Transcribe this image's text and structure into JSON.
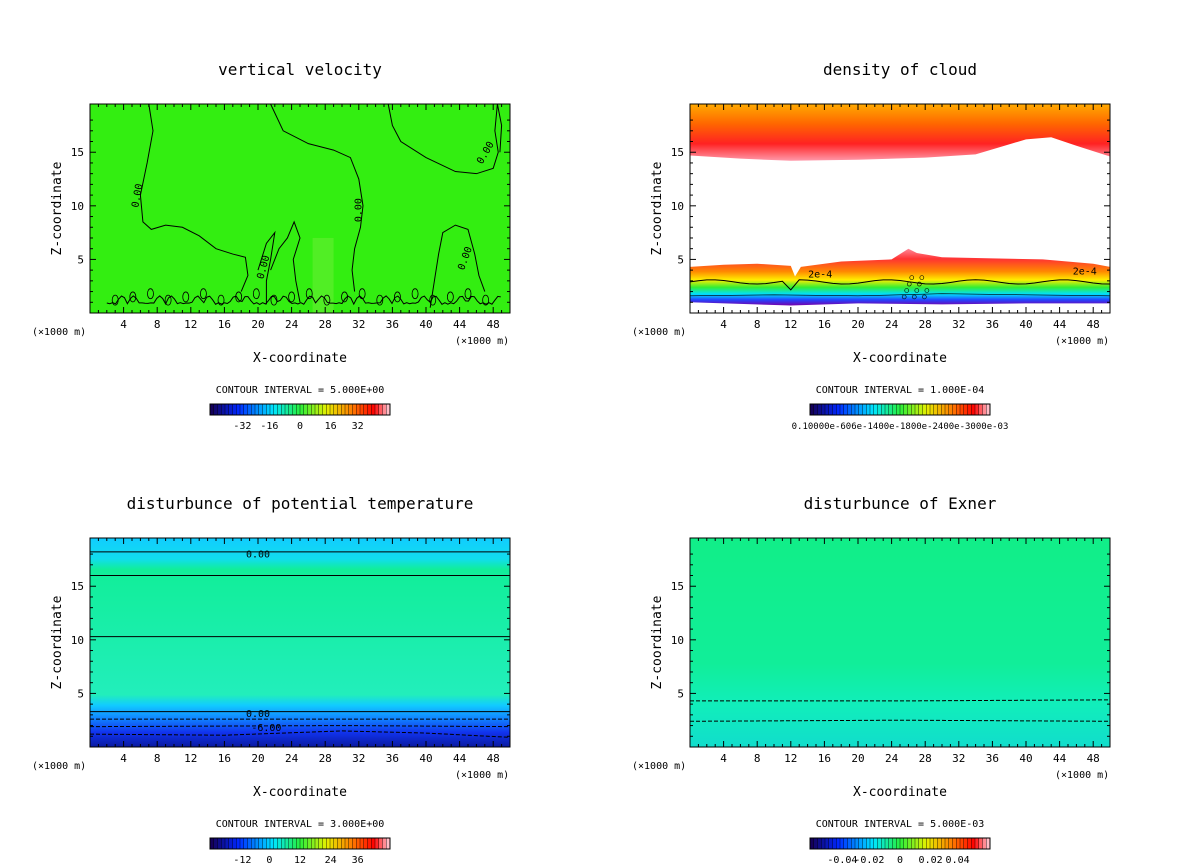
{
  "figure": {
    "panels": [
      {
        "id": "p0",
        "title": "vertical velocity",
        "field": "w",
        "bg": "#33ee11",
        "contour_interval": "CONTOUR INTERVAL = 5.000E+00",
        "cbar": {
          "kind": "spectral",
          "ticks": [
            "-32",
            "-16",
            "0",
            "16",
            "32"
          ]
        }
      },
      {
        "id": "p1",
        "title": "density of cloud",
        "field": "cloud",
        "bg": "#ffffff",
        "contour_interval": "CONTOUR INTERVAL = 1.000E-04",
        "cbar": {
          "kind": "spectral",
          "ticks": [
            "0.10000e-606e-1400e-1800e-2400e-3000e-03"
          ]
        }
      },
      {
        "id": "p2",
        "title": "disturbunce of potential temperature",
        "field": "theta",
        "bg": "#11ee88",
        "contour_interval": "CONTOUR INTERVAL = 3.000E+00",
        "cbar": {
          "kind": "spectral",
          "ticks": [
            "-12",
            "0",
            "12",
            "24",
            "36"
          ]
        }
      },
      {
        "id": "p3",
        "title": "disturbunce of Exner",
        "field": "exner",
        "bg": "#11ee99",
        "contour_interval": "CONTOUR INTERVAL = 5.000E-03",
        "cbar": {
          "kind": "spectral",
          "ticks": [
            "-0.04",
            "-0.02",
            "0",
            "0.02",
            "0.04"
          ]
        }
      }
    ],
    "x_axis_label": "X-coordinate",
    "y_axis_label": "Z-coordinate",
    "x_unit_left": "(×1000 m)",
    "x_unit_right": "(×1000 m)",
    "x_ticks": [
      "4",
      "8",
      "12",
      "16",
      "20",
      "24",
      "28",
      "32",
      "36",
      "40",
      "44",
      "48"
    ],
    "y_ticks": [
      "5",
      "10",
      "15"
    ]
  },
  "chart_data": [
    {
      "type": "heatmap",
      "title": "vertical velocity",
      "xlabel": "X-coordinate",
      "ylabel": "Z-coordinate",
      "xlim": [
        0,
        50
      ],
      "ylim": [
        0,
        19.5
      ],
      "contour_labels": [
        "0.00"
      ],
      "contour_interval": 5.0,
      "colorbar_ticks": [
        -32,
        -16,
        0,
        16,
        32
      ]
    },
    {
      "type": "heatmap",
      "title": "density of cloud",
      "xlabel": "X-coordinate",
      "ylabel": "Z-coordinate",
      "xlim": [
        0,
        50
      ],
      "ylim": [
        0,
        19.5
      ],
      "contour_labels": [
        "2e-4"
      ],
      "contour_interval": 0.0001
    },
    {
      "type": "heatmap",
      "title": "disturbunce of potential temperature",
      "xlabel": "X-coordinate",
      "ylabel": "Z-coordinate",
      "xlim": [
        0,
        50
      ],
      "ylim": [
        0,
        19.5
      ],
      "contour_labels": [
        "0.00",
        "-6.00"
      ],
      "contour_interval": 3.0,
      "colorbar_ticks": [
        -12,
        0,
        12,
        24,
        36
      ]
    },
    {
      "type": "heatmap",
      "title": "disturbunce of Exner",
      "xlabel": "X-coordinate",
      "ylabel": "Z-coordinate",
      "xlim": [
        0,
        50
      ],
      "ylim": [
        0,
        19.5
      ],
      "contour_interval": 0.005,
      "colorbar_ticks": [
        -0.04,
        -0.02,
        0,
        0.02,
        0.04
      ]
    }
  ]
}
